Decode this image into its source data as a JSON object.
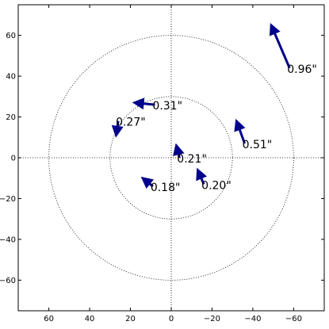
{
  "chart_data": {
    "type": "quiver",
    "title": "",
    "xlabel": "",
    "ylabel": "",
    "xlim": [
      75,
      -75
    ],
    "ylim": [
      -75,
      75
    ],
    "x_ticks": [
      60,
      40,
      20,
      0,
      -20,
      -40,
      -60
    ],
    "x_tick_labels": [
      "60",
      "40",
      "20",
      "0",
      "−20",
      "−40",
      "−60"
    ],
    "y_ticks": [
      60,
      40,
      20,
      0,
      -20,
      -40,
      -60
    ],
    "y_tick_labels": [
      "60",
      "40",
      "20",
      "0",
      "−20",
      "−40",
      "−60"
    ],
    "circles": [
      30,
      60
    ],
    "crosshair": true,
    "arrow_color": "#00008b",
    "vectors": [
      {
        "x": -58,
        "y": 44,
        "dx": 9,
        "dy": 21,
        "label": "0.96\""
      },
      {
        "x": 8,
        "y": 26,
        "dx": 10,
        "dy": 1,
        "label": "0.31\""
      },
      {
        "x": 26,
        "y": 18,
        "dx": 1,
        "dy": -7,
        "label": "0.27\""
      },
      {
        "x": -36,
        "y": 7,
        "dx": 4,
        "dy": 11,
        "label": "0.51\""
      },
      {
        "x": -4,
        "y": 0,
        "dx": 1.5,
        "dy": 6,
        "label": "0.21\""
      },
      {
        "x": 9,
        "y": -14,
        "dx": 5,
        "dy": 4,
        "label": "0.18\""
      },
      {
        "x": -16,
        "y": -13,
        "dx": 3,
        "dy": 7,
        "label": "0.20\""
      }
    ]
  }
}
